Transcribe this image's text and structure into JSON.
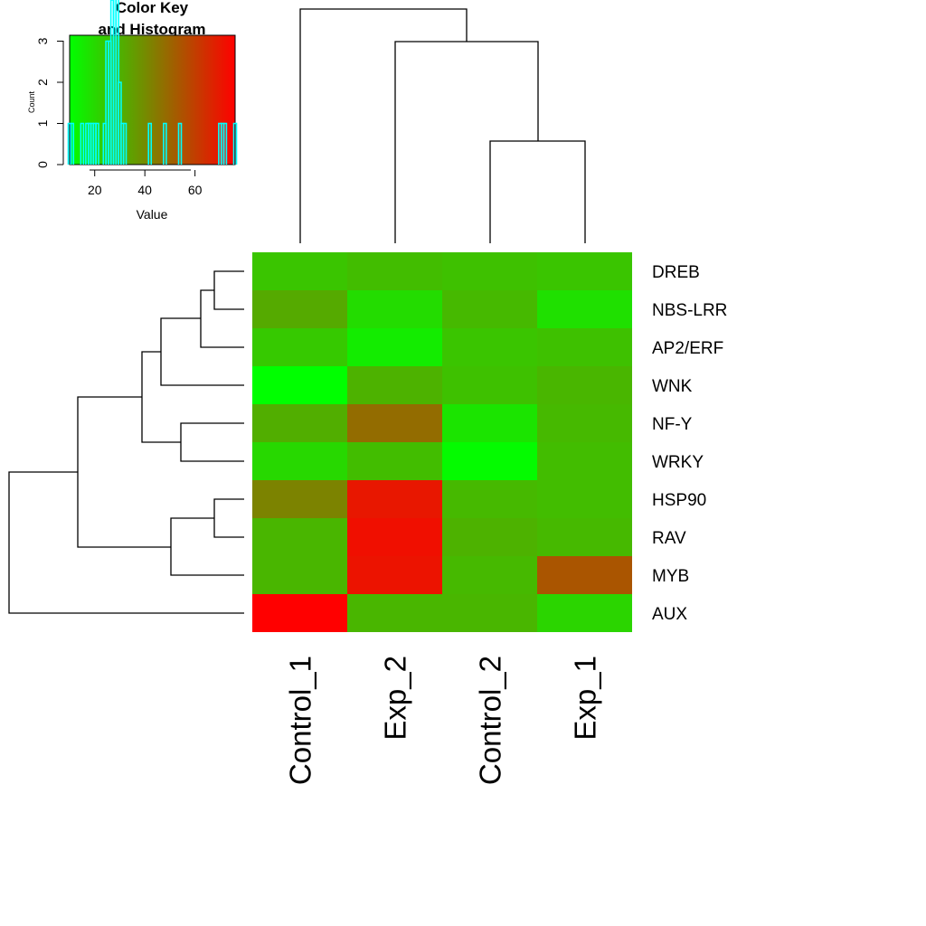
{
  "chart_data": {
    "type": "heatmap",
    "rows": [
      "DREB",
      "NBS-LRR",
      "AP2/ERF",
      "WNK",
      "NF-Y",
      "WRKY",
      "HSP90",
      "RAV",
      "MYB",
      "AUX"
    ],
    "columns": [
      "Control_1",
      "Exp_2",
      "Control_2",
      "Exp_1"
    ],
    "values": [
      [
        25,
        27,
        26,
        25
      ],
      [
        32,
        19,
        28,
        18
      ],
      [
        24,
        15,
        25,
        26
      ],
      [
        10,
        30,
        26,
        29
      ],
      [
        31,
        48,
        17,
        28
      ],
      [
        20,
        27,
        11,
        27
      ],
      [
        42,
        70,
        28,
        27
      ],
      [
        29,
        72,
        30,
        28
      ],
      [
        29,
        71,
        28,
        54
      ],
      [
        76,
        29,
        29,
        21
      ]
    ],
    "color_scale": {
      "min": 10,
      "max": 76,
      "low_color": "#00ff00",
      "high_color": "#ff0000"
    },
    "color_key": {
      "title_line1": "Color Key",
      "title_line2": "and Histogram",
      "xlabel": "Value",
      "ylabel": "Count",
      "x_ticks": [
        "20",
        "40",
        "60"
      ],
      "y_ticks": [
        "0",
        "1",
        "2",
        "3"
      ],
      "histogram_color": "#00ffff"
    },
    "row_dendrogram": "(((((DREB,NBS-LRR),AP2/ERF),WNK),(NF-Y,WRKY)),((HSP90,RAV),MYB)),AUX)",
    "column_dendrogram": "(Control_1,(Exp_2,(Control_2,Exp_1)))"
  }
}
